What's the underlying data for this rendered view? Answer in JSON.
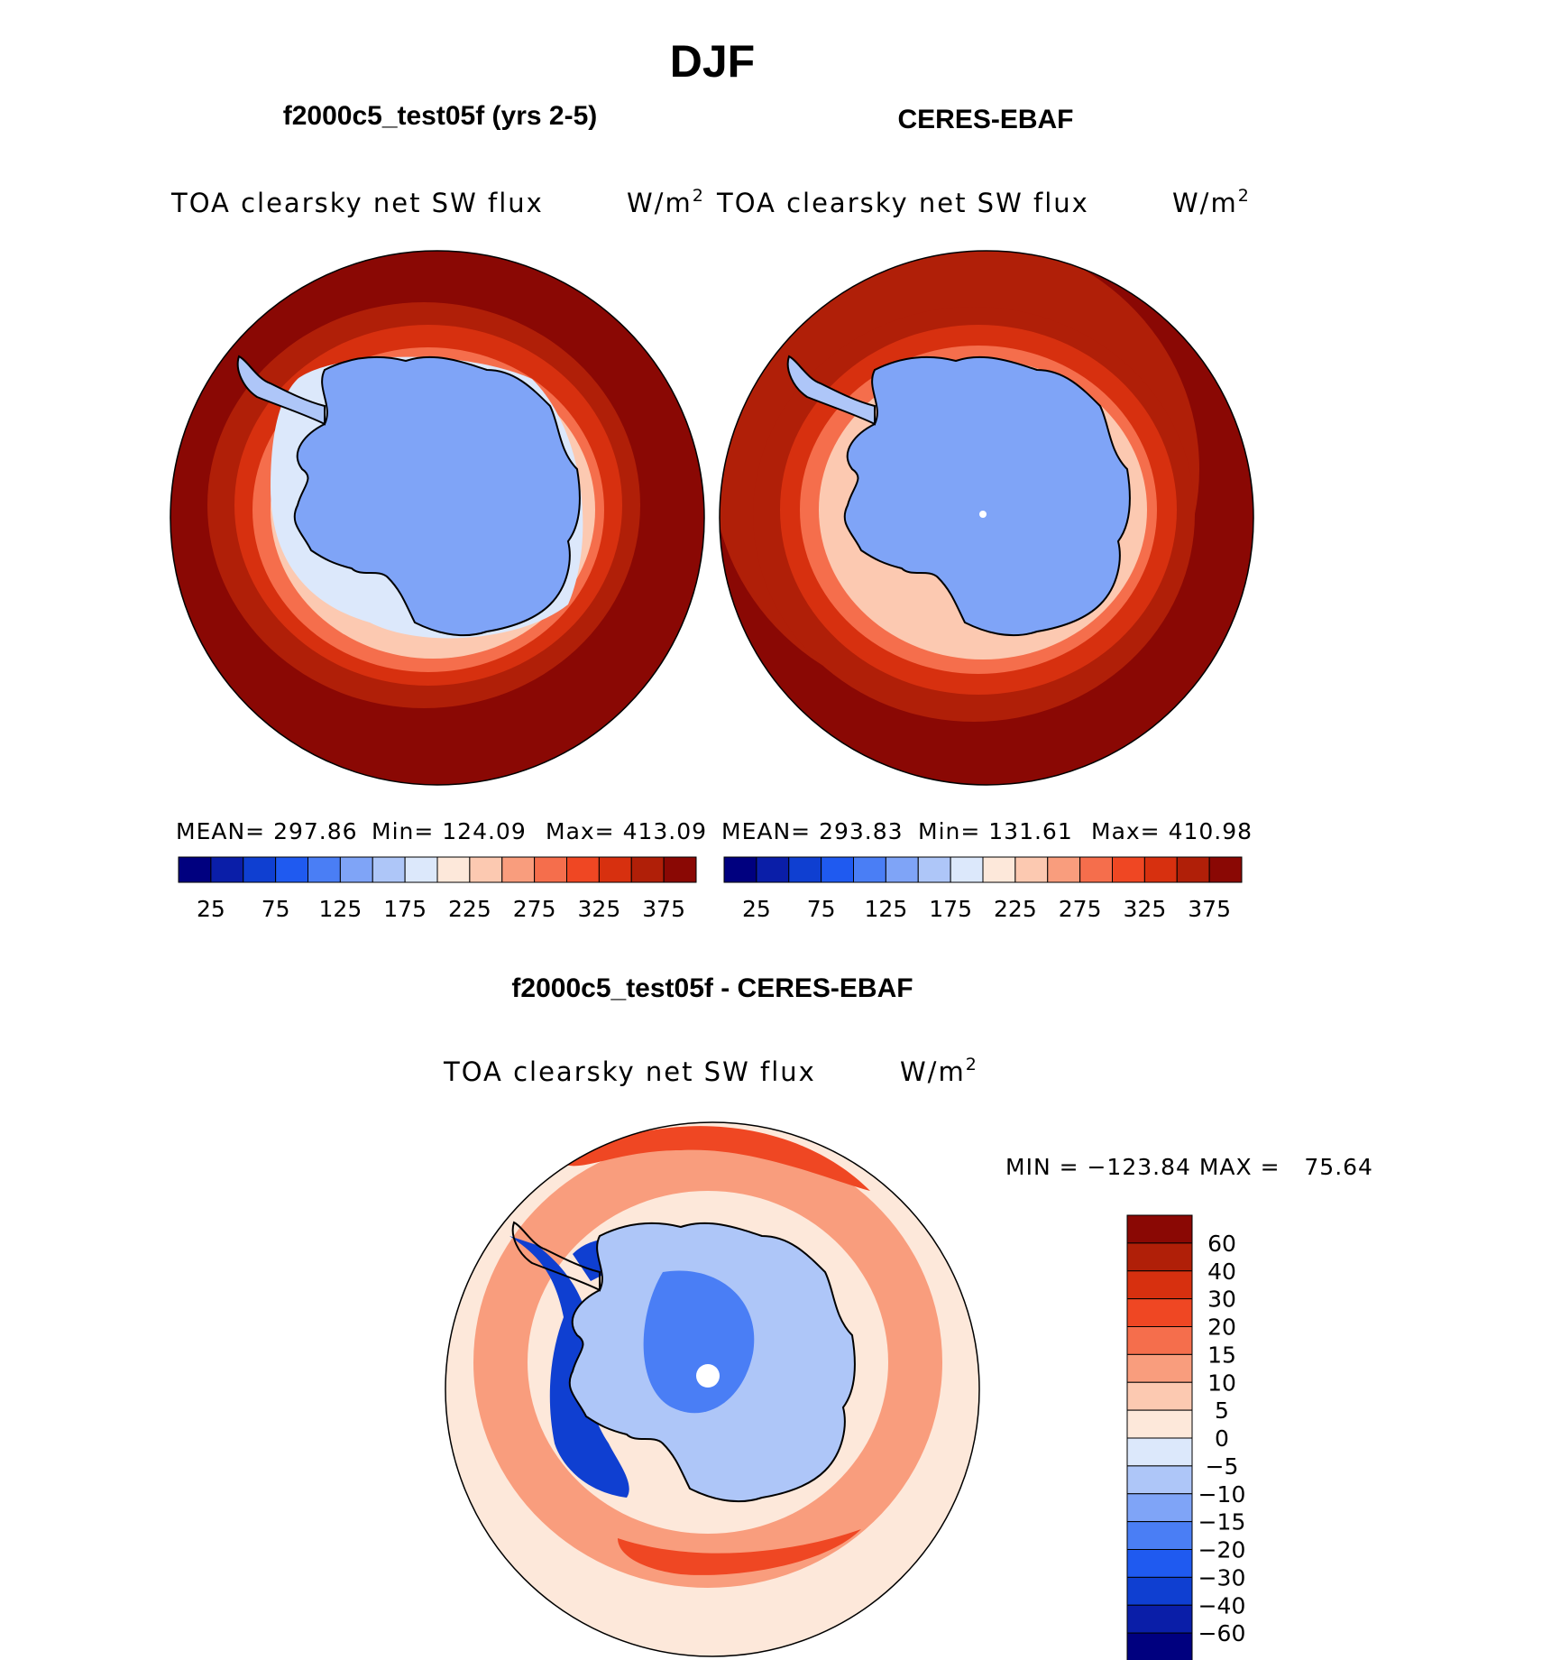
{
  "season": "DJF",
  "panels": {
    "model": {
      "title": "f2000c5_test05f (yrs 2-5)",
      "variable": "TOA clearsky net SW flux",
      "units_base": "W/m",
      "units_exp": "2",
      "stats": {
        "mean": "MEAN= 297.86",
        "min": "Min= 124.09",
        "max": "Max= 413.09"
      }
    },
    "obs": {
      "title": "CERES-EBAF",
      "variable": "TOA clearsky net SW flux",
      "units_base": "W/m",
      "units_exp": "2",
      "stats": {
        "mean": "MEAN= 293.83",
        "min": "Min= 131.61",
        "max": "Max= 410.98"
      }
    },
    "diff": {
      "title": "f2000c5_test05f - CERES-EBAF",
      "variable": "TOA clearsky net SW flux",
      "units_base": "W/m",
      "units_exp": "2",
      "minmax": "MIN = −123.84 MAX =   75.64"
    }
  },
  "abs_colorbar": {
    "colors": [
      "#00007f",
      "#0a1ea8",
      "#0f3fd1",
      "#1f5af0",
      "#4a7ef5",
      "#7fa4f7",
      "#aec6f8",
      "#dce8fb",
      "#fde8da",
      "#fcc9b1",
      "#f99d7d",
      "#f56e4c",
      "#ef4723",
      "#d7300f",
      "#b01f08",
      "#8a0804"
    ],
    "labels": [
      "25",
      "75",
      "125",
      "175",
      "225",
      "275",
      "325",
      "375"
    ]
  },
  "diff_colorbar": {
    "colors_top_to_bottom": [
      "#8a0804",
      "#b01f08",
      "#d7300f",
      "#ef4723",
      "#f56e4c",
      "#f99d7d",
      "#fcc9b1",
      "#fde8da",
      "#dce8fb",
      "#aec6f8",
      "#7fa4f7",
      "#4a7ef5",
      "#1f5af0",
      "#0f3fd1",
      "#0a1ea8",
      "#00007f"
    ],
    "labels_top_to_bottom": [
      "60",
      "40",
      "30",
      "20",
      "15",
      "10",
      "5",
      "0",
      "−5",
      "−10",
      "−15",
      "−20",
      "−30",
      "−40",
      "−60"
    ]
  },
  "map_colors": {
    "ocean_high": "#8a0804",
    "ring2": "#b01f08",
    "ring3": "#d7300f",
    "ring4": "#f56e4c",
    "ring5": "#fcc9b1",
    "ring6": "#dce8fb",
    "ice": "#7fa4f7",
    "ice_light": "#aec6f8",
    "diff_bg": "#fde8da",
    "diff_pos": "#f99d7d",
    "diff_pos_strong": "#ef4723",
    "diff_neg": "#aec6f8",
    "diff_neg_mid": "#4a7ef5",
    "diff_neg_strong": "#0f3fd1"
  }
}
